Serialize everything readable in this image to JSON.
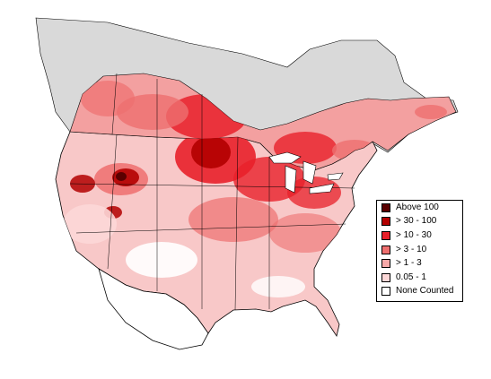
{
  "colors": {
    "none_counted": "#ffffff",
    "outside_range": "#d9d9d9",
    "border": "#000000",
    "water": "#ffffff"
  },
  "legend": {
    "items": [
      {
        "label": "Above 100",
        "color": "#5a0000"
      },
      {
        "label": "> 30 - 100",
        "color": "#b30000"
      },
      {
        "label": "> 10 - 30",
        "color": "#e8202a"
      },
      {
        "label": "> 3 - 10",
        "color": "#ee6f6f"
      },
      {
        "label": "> 1 - 3",
        "color": "#f6a8a8"
      },
      {
        "label": "0.05 - 1",
        "color": "#fcd7d7"
      },
      {
        "label": "None Counted",
        "color": "#ffffff"
      }
    ]
  }
}
